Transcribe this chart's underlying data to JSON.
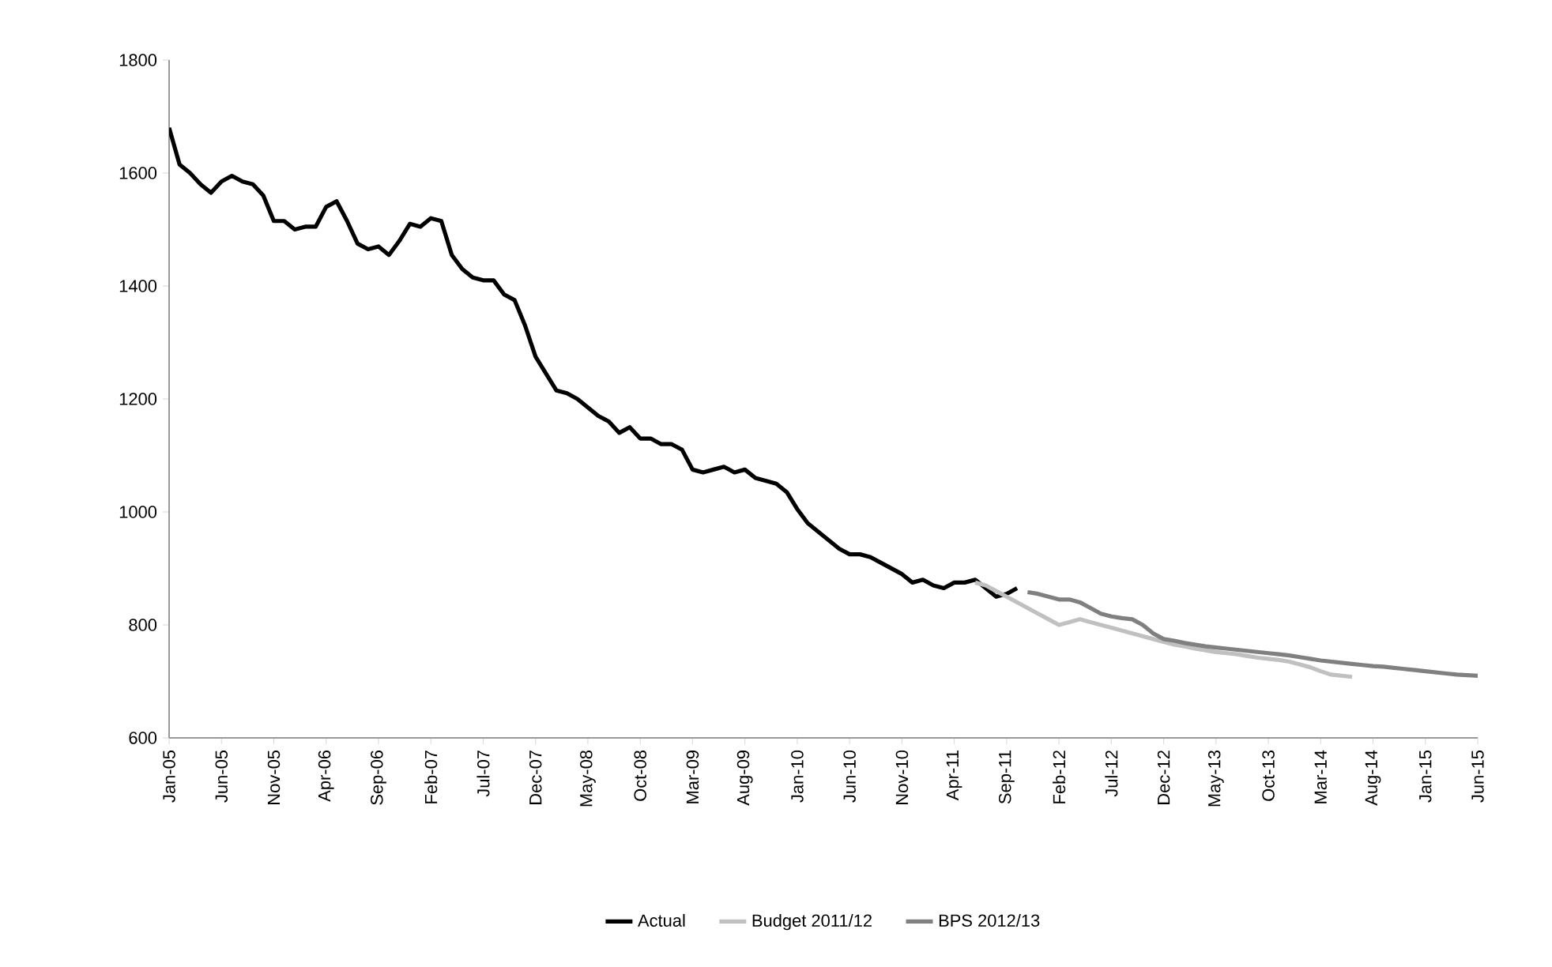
{
  "chart_data": {
    "type": "line",
    "categories": [
      "Jan-05",
      null,
      null,
      null,
      null,
      "Jun-05",
      null,
      null,
      null,
      null,
      "Nov-05",
      null,
      null,
      null,
      null,
      "Apr-06",
      null,
      null,
      null,
      null,
      "Sep-06",
      null,
      null,
      null,
      null,
      "Feb-07",
      null,
      null,
      null,
      null,
      "Jul-07",
      null,
      null,
      null,
      null,
      "Dec-07",
      null,
      null,
      null,
      null,
      "May-08",
      null,
      null,
      null,
      null,
      "Oct-08",
      null,
      null,
      null,
      null,
      "Mar-09",
      null,
      null,
      null,
      null,
      "Aug-09",
      null,
      null,
      null,
      null,
      "Jan-10",
      null,
      null,
      null,
      null,
      "Jun-10",
      null,
      null,
      null,
      null,
      "Nov-10",
      null,
      null,
      null,
      null,
      "Apr-11",
      null,
      null,
      null,
      null,
      "Sep-11",
      null,
      null,
      null,
      null,
      "Feb-12",
      null,
      null,
      null,
      null,
      "Jul-12",
      null,
      null,
      null,
      null,
      "Dec-12",
      null,
      null,
      null,
      null,
      "May-13",
      null,
      null,
      null,
      null,
      "Oct-13",
      null,
      null,
      null,
      null,
      "Mar-14",
      null,
      null,
      null,
      null,
      "Aug-14",
      null,
      null,
      null,
      null,
      "Jan-15",
      null,
      null,
      null,
      null,
      "Jun-15"
    ],
    "series": [
      {
        "name": "Actual",
        "color": "#000000",
        "values": [
          1680,
          1615,
          1600,
          1580,
          1565,
          1585,
          1595,
          1585,
          1580,
          1560,
          1515,
          1515,
          1500,
          1505,
          1505,
          1540,
          1550,
          1515,
          1475,
          1465,
          1470,
          1455,
          1480,
          1510,
          1505,
          1520,
          1515,
          1455,
          1430,
          1415,
          1410,
          1410,
          1385,
          1375,
          1330,
          1275,
          1245,
          1215,
          1210,
          1200,
          1185,
          1170,
          1160,
          1140,
          1150,
          1130,
          1130,
          1120,
          1120,
          1110,
          1075,
          1070,
          1075,
          1080,
          1070,
          1075,
          1060,
          1055,
          1050,
          1035,
          1005,
          980,
          965,
          950,
          935,
          925,
          925,
          920,
          910,
          900,
          890,
          875,
          880,
          870,
          865,
          875,
          875,
          880,
          865,
          850,
          855,
          865,
          null,
          null,
          null,
          null,
          null,
          null,
          null,
          null,
          null,
          null,
          null,
          null,
          null,
          null,
          null,
          null,
          null,
          null,
          null,
          null,
          null,
          null,
          null,
          null,
          null,
          null,
          null,
          null,
          null,
          null,
          null,
          null,
          null,
          null,
          null,
          null,
          null,
          null,
          null,
          null,
          null,
          null,
          null,
          null
        ]
      },
      {
        "name": "Budget 2011/12",
        "color": "#c0c0c0",
        "values": [
          null,
          null,
          null,
          null,
          null,
          null,
          null,
          null,
          null,
          null,
          null,
          null,
          null,
          null,
          null,
          null,
          null,
          null,
          null,
          null,
          null,
          null,
          null,
          null,
          null,
          null,
          null,
          null,
          null,
          null,
          null,
          null,
          null,
          null,
          null,
          null,
          null,
          null,
          null,
          null,
          null,
          null,
          null,
          null,
          null,
          null,
          null,
          null,
          null,
          null,
          null,
          null,
          null,
          null,
          null,
          null,
          null,
          null,
          null,
          null,
          null,
          null,
          null,
          null,
          null,
          null,
          null,
          null,
          null,
          null,
          null,
          null,
          null,
          null,
          null,
          null,
          null,
          875,
          870,
          860,
          850,
          840,
          830,
          820,
          810,
          800,
          805,
          810,
          805,
          800,
          795,
          790,
          785,
          780,
          775,
          770,
          765,
          762,
          758,
          755,
          752,
          750,
          748,
          745,
          742,
          740,
          738,
          735,
          730,
          725,
          718,
          712,
          710,
          708,
          null,
          null,
          null,
          null,
          null,
          null,
          null,
          null,
          null,
          null,
          null,
          null
        ]
      },
      {
        "name": "BPS 2012/13",
        "color": "#808080",
        "values": [
          null,
          null,
          null,
          null,
          null,
          null,
          null,
          null,
          null,
          null,
          null,
          null,
          null,
          null,
          null,
          null,
          null,
          null,
          null,
          null,
          null,
          null,
          null,
          null,
          null,
          null,
          null,
          null,
          null,
          null,
          null,
          null,
          null,
          null,
          null,
          null,
          null,
          null,
          null,
          null,
          null,
          null,
          null,
          null,
          null,
          null,
          null,
          null,
          null,
          null,
          null,
          null,
          null,
          null,
          null,
          null,
          null,
          null,
          null,
          null,
          null,
          null,
          null,
          null,
          null,
          null,
          null,
          null,
          null,
          null,
          null,
          null,
          null,
          null,
          null,
          null,
          null,
          null,
          null,
          null,
          null,
          null,
          858,
          855,
          850,
          845,
          845,
          840,
          830,
          820,
          815,
          812,
          810,
          800,
          785,
          775,
          772,
          768,
          765,
          762,
          760,
          758,
          756,
          754,
          752,
          750,
          748,
          746,
          743,
          740,
          737,
          735,
          733,
          731,
          729,
          727,
          726,
          724,
          722,
          720,
          718,
          716,
          714,
          712,
          711,
          710
        ]
      }
    ],
    "ylim": [
      600,
      1800
    ],
    "yticks": [
      600,
      800,
      1000,
      1200,
      1400,
      1600,
      1800
    ],
    "legend": "bottom"
  }
}
